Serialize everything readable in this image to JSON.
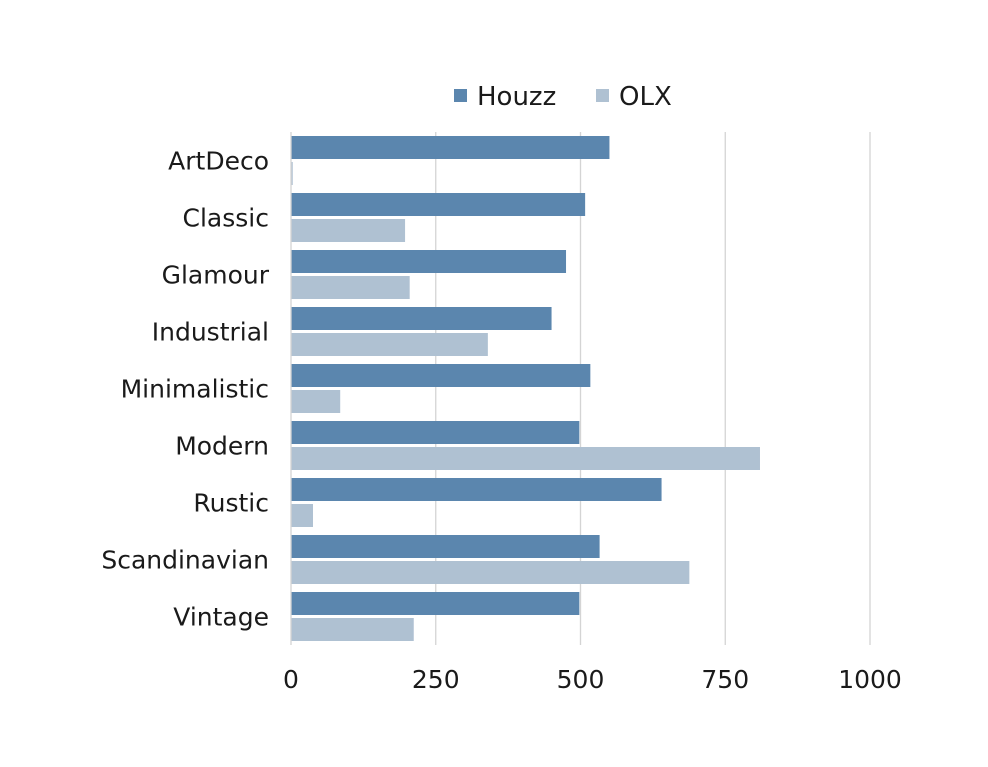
{
  "chart_data": {
    "type": "bar",
    "orientation": "horizontal",
    "categories": [
      "ArtDeco",
      "Classic",
      "Glamour",
      "Industrial",
      "Minimalistic",
      "Modern",
      "Rustic",
      "Scandinavian",
      "Vintage"
    ],
    "series": [
      {
        "name": "Houzz",
        "color": "#5b86ae",
        "values": [
          550,
          508,
          475,
          450,
          517,
          498,
          640,
          533,
          498
        ]
      },
      {
        "name": "OLX",
        "color": "#afc1d2",
        "values": [
          3,
          197,
          205,
          340,
          85,
          810,
          38,
          688,
          212
        ]
      }
    ],
    "xlim": [
      0,
      1000
    ],
    "xticks": [
      "0",
      "250",
      "500",
      "750",
      "1000"
    ],
    "grid": "vertical",
    "legend_position": "top"
  }
}
